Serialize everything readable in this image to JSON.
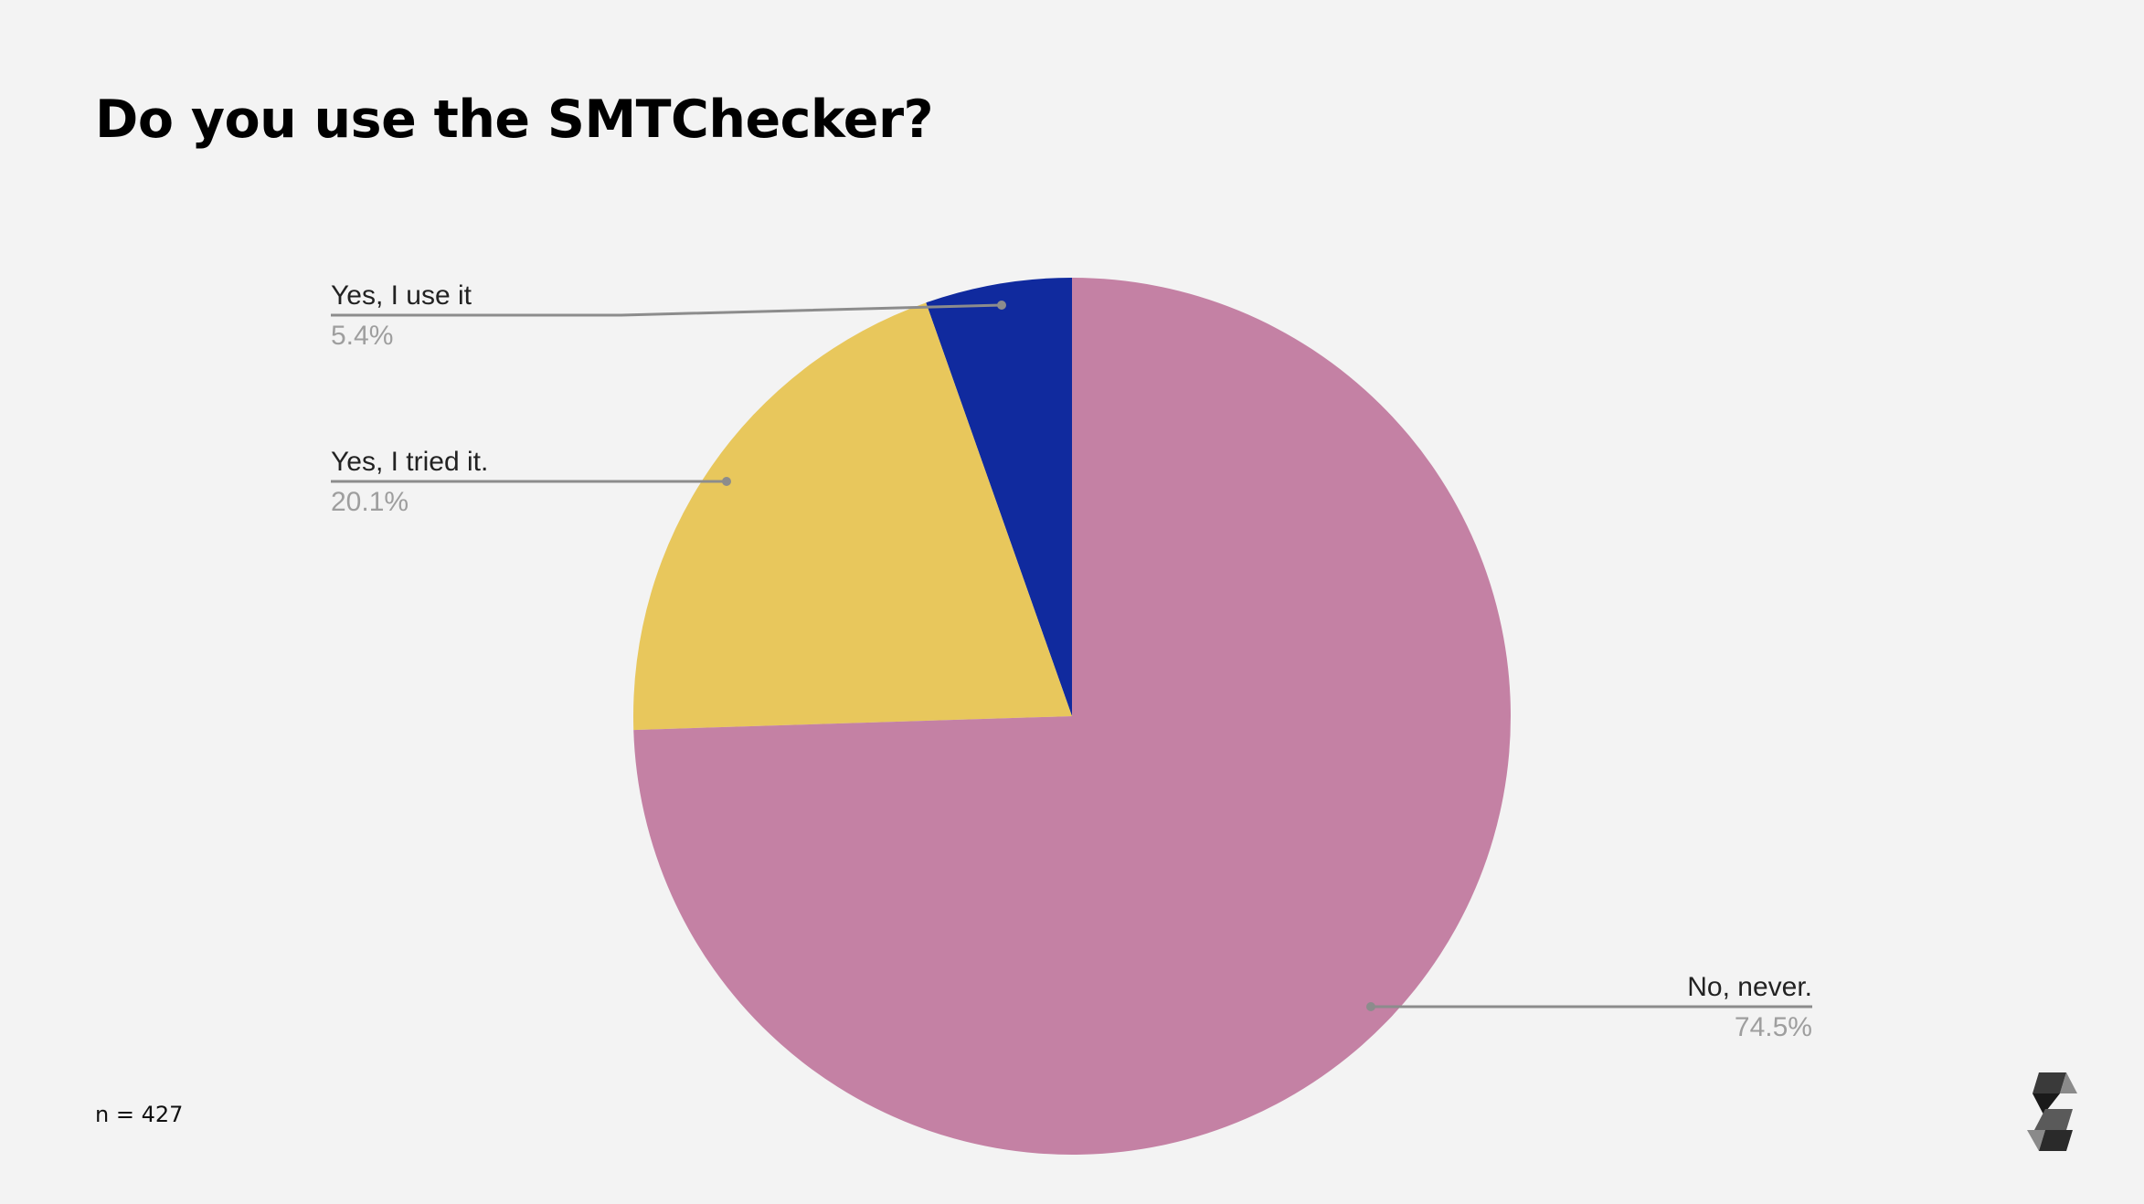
{
  "title": "Do you use the SMTChecker?",
  "footnote": "n = 427",
  "logo": {
    "icon": "solidity-logo-icon"
  },
  "chart_data": {
    "type": "pie",
    "title": "Do you use the SMTChecker?",
    "start_angle_deg": 0,
    "direction": "counterclockwise",
    "slices": [
      {
        "label": "Yes, I use it",
        "value": 5.4,
        "value_label": "5.4%",
        "color": "#102a9e"
      },
      {
        "label": "Yes, I tried it.",
        "value": 20.1,
        "value_label": "20.1%",
        "color": "#e8c75c"
      },
      {
        "label": "No, never.",
        "value": 74.5,
        "value_label": "74.5%",
        "color": "#c481a4"
      }
    ],
    "n": 427
  }
}
